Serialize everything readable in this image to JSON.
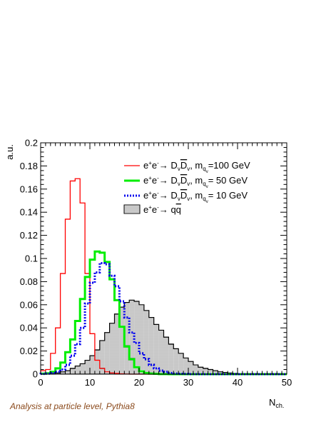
{
  "chart_data": {
    "type": "histogram",
    "xlabel": "N",
    "xlabel_sub": "ch.",
    "ylabel": "a.u.",
    "xlim": [
      0,
      50
    ],
    "ylim": [
      0,
      0.2
    ],
    "x_ticks": [
      0,
      10,
      20,
      30,
      40,
      50
    ],
    "y_ticks": [
      0,
      0.02,
      0.04,
      0.06,
      0.08,
      0.1,
      0.12,
      0.14,
      0.16,
      0.18,
      0.2
    ],
    "bin_width": 1,
    "bin_low_edges": [
      0,
      1,
      2,
      3,
      4,
      5,
      6,
      7,
      8,
      9,
      10,
      11,
      12,
      13,
      14,
      15,
      16,
      17,
      18,
      19,
      20,
      21,
      22,
      23,
      24,
      25,
      26,
      27,
      28,
      29,
      30,
      31,
      32,
      33,
      34,
      35,
      36,
      37,
      38,
      39,
      40,
      41,
      42,
      43,
      44,
      45,
      46,
      47,
      48,
      49
    ],
    "legend": {
      "position": "top-right"
    },
    "series": [
      {
        "style": "solid",
        "color": "#ff0000",
        "legend_label": "e⁺e⁻→ D_vD̄_v, m_q_v=100 GeV",
        "values": [
          0.003,
          0.004,
          0.018,
          0.04,
          0.087,
          0.134,
          0.167,
          0.169,
          0.148,
          0.087,
          0.035,
          0.012,
          0.005,
          0.002,
          0.001,
          0.0007,
          0.0003,
          0.0001,
          0,
          0,
          0,
          0,
          0,
          0,
          0,
          0,
          0,
          0,
          0,
          0,
          0,
          0,
          0,
          0,
          0,
          0,
          0,
          0,
          0,
          0,
          0,
          0,
          0,
          0,
          0,
          0,
          0,
          0,
          0,
          0
        ]
      },
      {
        "style": "thick-solid",
        "color": "#00ee00",
        "legend_label": "e⁺e⁻→ D_vD̄_v, m_q_v= 50 GeV",
        "values": [
          0.0005,
          0.0008,
          0.002,
          0.005,
          0.01,
          0.019,
          0.03,
          0.046,
          0.065,
          0.084,
          0.099,
          0.106,
          0.105,
          0.097,
          0.082,
          0.064,
          0.041,
          0.024,
          0.013,
          0.006,
          0.0025,
          0.001,
          0.0005,
          0.0003,
          0.0001,
          5e-05,
          0,
          0,
          0,
          0,
          0,
          0,
          0,
          0,
          0,
          0,
          0,
          0,
          0,
          0,
          0,
          0,
          0,
          0,
          0,
          0,
          0,
          0,
          0,
          0
        ]
      },
      {
        "style": "dotted",
        "color": "#0000ee",
        "legend_label": "e⁺e⁻→ D_vD̄_v, m_q_v= 10 GeV",
        "values": [
          0.0002,
          0.0005,
          0.001,
          0.002,
          0.004,
          0.008,
          0.016,
          0.026,
          0.04,
          0.061,
          0.079,
          0.088,
          0.096,
          0.095,
          0.085,
          0.076,
          0.063,
          0.049,
          0.036,
          0.027,
          0.018,
          0.013,
          0.008,
          0.005,
          0.003,
          0.002,
          0.001,
          0.0005,
          0.0003,
          0.0002,
          0.0001,
          0.0001,
          0,
          0,
          0,
          0,
          0,
          0,
          0,
          0,
          0,
          0,
          0,
          0,
          0,
          0,
          0,
          0,
          0,
          0
        ]
      },
      {
        "style": "hatched",
        "color": "#000000",
        "legend_label": "e⁺e⁻→ qq̄",
        "values": [
          0,
          0.0002,
          0.0005,
          0.001,
          0.002,
          0.003,
          0.005,
          0.007,
          0.009,
          0.012,
          0.016,
          0.021,
          0.029,
          0.036,
          0.044,
          0.052,
          0.058,
          0.062,
          0.064,
          0.063,
          0.06,
          0.055,
          0.049,
          0.043,
          0.038,
          0.032,
          0.026,
          0.022,
          0.018,
          0.014,
          0.011,
          0.008,
          0.006,
          0.005,
          0.004,
          0.003,
          0.002,
          0.0015,
          0.001,
          0.0007,
          0.0005,
          0.0004,
          0.0003,
          0.0002,
          0.0001,
          0.0001,
          5e-05,
          0,
          0,
          0
        ]
      }
    ]
  },
  "footnote": "Analysis at particle level, Pythia8",
  "legend_text": {
    "s0": {
      "main": "e",
      "a": "+",
      "b": "e",
      "c": "-",
      "arrow": "→ D",
      "v1": "v",
      "dbar": "D",
      "v2": "v",
      "m": ", m",
      "q": "q",
      "qv": "v",
      "val": "=100 GeV"
    },
    "s1": {
      "main": "e",
      "a": "+",
      "b": "e",
      "c": "-",
      "arrow": "→ D",
      "v1": "v",
      "dbar": "D",
      "v2": "v",
      "m": ", m",
      "q": "q",
      "qv": "v",
      "val": "= 50 GeV"
    },
    "s2": {
      "main": "e",
      "a": "+",
      "b": "e",
      "c": "-",
      "arrow": "→ D",
      "v1": "v",
      "dbar": "D",
      "v2": "v",
      "m": ", m",
      "q": "q",
      "qv": "v",
      "val": "= 10 GeV"
    },
    "s3": {
      "main": "e",
      "a": "+",
      "b": "e",
      "c": "-",
      "arrow": "→ ",
      "q1": "q",
      "q2": "q"
    }
  }
}
